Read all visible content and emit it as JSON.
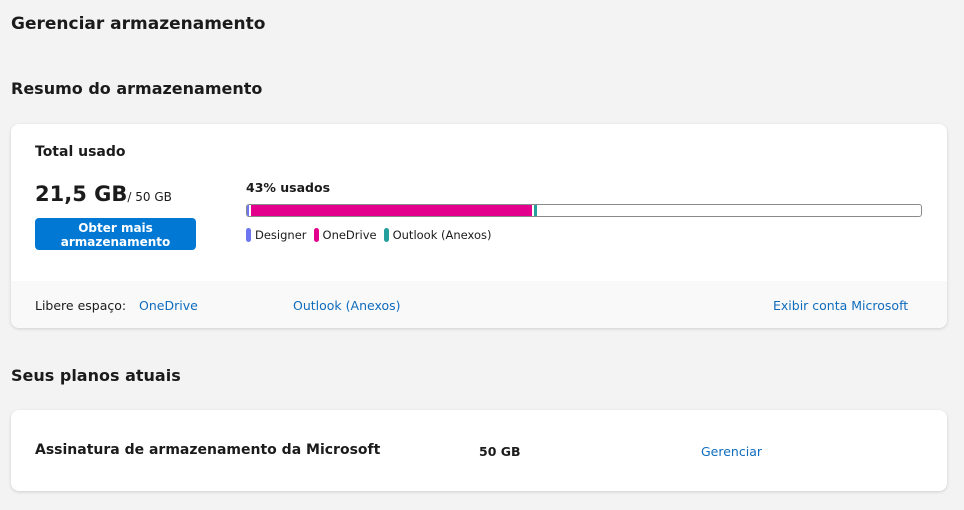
{
  "page_title": "Gerenciar armazenamento",
  "summary": {
    "heading": "Resumo do armazenamento",
    "total_label": "Total usado",
    "used": "21,5 GB",
    "capacity": "/ 50 GB",
    "get_more_label": "Obter mais armazenamento",
    "percent_label": "43% usados",
    "segments": [
      {
        "name": "Designer",
        "color": "#6b76f0",
        "percent": 0.5
      },
      {
        "name": "OneDrive",
        "color": "#e3008c",
        "percent": 42
      },
      {
        "name": "Outlook (Anexos)",
        "color": "#26a09c",
        "percent": 0.8
      }
    ],
    "free_space_label": "Libere espaço:",
    "free_links": [
      "OneDrive",
      "Outlook (Anexos)"
    ],
    "account_link": "Exibir conta Microsoft"
  },
  "plans": {
    "heading": "Seus planos atuais",
    "items": [
      {
        "name": "Assinatura de armazenamento da Microsoft",
        "size": "50 GB",
        "action": "Gerenciar"
      }
    ]
  }
}
